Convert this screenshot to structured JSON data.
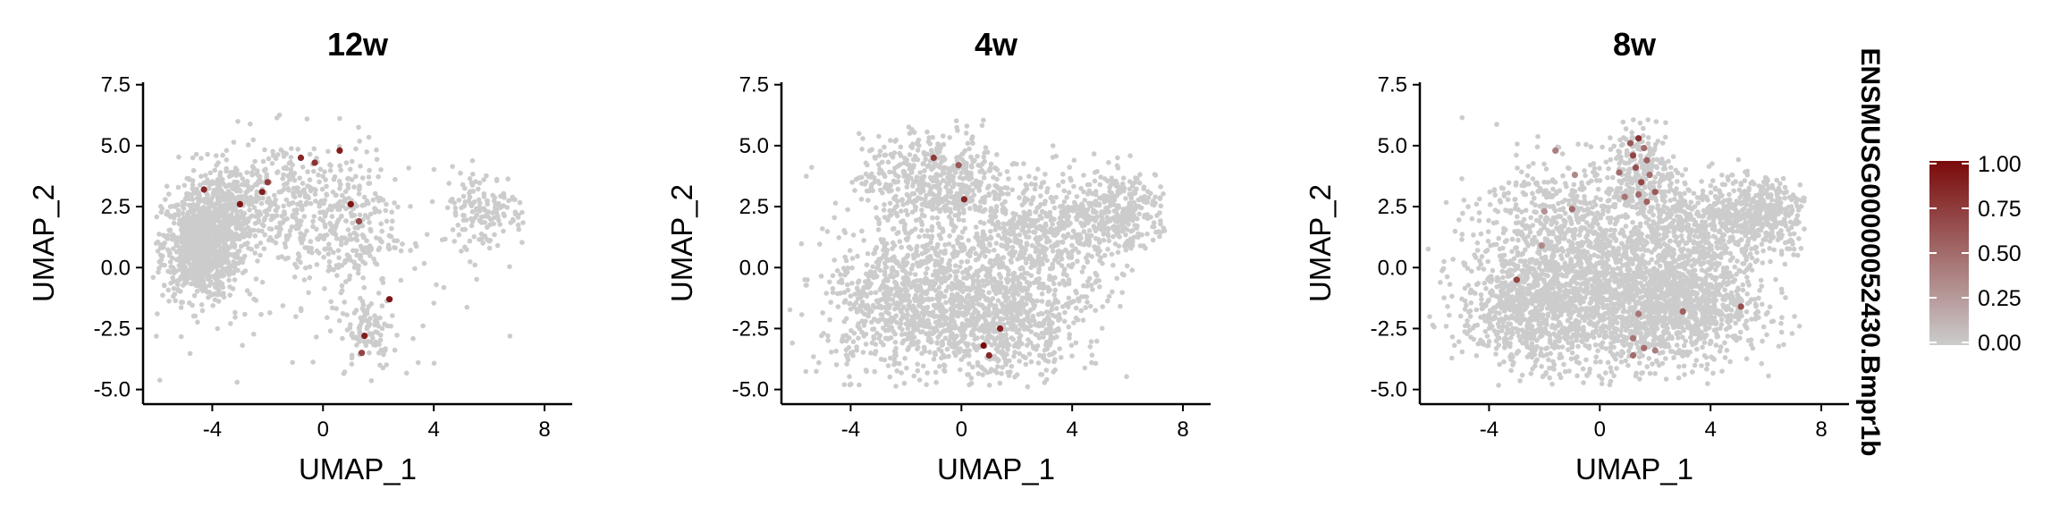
{
  "figure": {
    "colorbar": {
      "title": "ENSMUSG00000052430.Bmpr1b",
      "ticks": [
        "1.00",
        "0.75",
        "0.50",
        "0.25",
        "0.00"
      ],
      "tick_values": [
        1.0,
        0.75,
        0.5,
        0.25,
        0.0
      ],
      "low_color": "#cccccc",
      "high_color": "#7a0a0a"
    }
  },
  "chart_data": [
    {
      "type": "scatter",
      "title": "12w",
      "xlabel": "UMAP_1",
      "ylabel": "UMAP_2",
      "xlim": [
        -6.5,
        9
      ],
      "ylim": [
        -5.6,
        7.6
      ],
      "xticks": [
        -4,
        0,
        4,
        8
      ],
      "xtick_labels": [
        "-4",
        "0",
        "4",
        "8"
      ],
      "yticks": [
        7.5,
        5.0,
        2.5,
        0.0,
        -2.5,
        -5.0
      ],
      "ytick_labels": [
        "7.5",
        "5.0",
        "2.5",
        "0.0",
        "-2.5",
        "-5.0"
      ],
      "grid": false,
      "background_clusters": [
        {
          "cx": -4.4,
          "cy": 0.9,
          "sx": 0.7,
          "sy": 1.1,
          "n": 900
        },
        {
          "cx": -3.3,
          "cy": 2.4,
          "sx": 0.8,
          "sy": 1.0,
          "n": 320
        },
        {
          "cx": -1.0,
          "cy": 3.0,
          "sx": 1.4,
          "sy": 1.2,
          "n": 260
        },
        {
          "cx": 0.8,
          "cy": 1.2,
          "sx": 0.9,
          "sy": 1.2,
          "n": 220
        },
        {
          "cx": 1.6,
          "cy": -2.6,
          "sx": 0.5,
          "sy": 0.8,
          "n": 90
        },
        {
          "cx": 5.8,
          "cy": 2.4,
          "sx": 0.8,
          "sy": 0.8,
          "n": 150
        },
        {
          "cx": 0.0,
          "cy": 0.0,
          "sx": 3.2,
          "sy": 2.6,
          "n": 120
        }
      ],
      "expressing_cells": [
        {
          "x": -4.3,
          "y": 3.2,
          "value": 0.85
        },
        {
          "x": -3.0,
          "y": 2.6,
          "value": 0.95
        },
        {
          "x": -2.2,
          "y": 3.1,
          "value": 0.9
        },
        {
          "x": -2.0,
          "y": 3.5,
          "value": 0.75
        },
        {
          "x": -0.8,
          "y": 4.5,
          "value": 0.85
        },
        {
          "x": -0.3,
          "y": 4.3,
          "value": 0.8
        },
        {
          "x": 0.6,
          "y": 4.8,
          "value": 0.9
        },
        {
          "x": 1.0,
          "y": 2.6,
          "value": 0.95
        },
        {
          "x": 1.3,
          "y": 1.9,
          "value": 0.7
        },
        {
          "x": 2.4,
          "y": -1.3,
          "value": 0.95
        },
        {
          "x": 1.5,
          "y": -2.8,
          "value": 0.9
        },
        {
          "x": 1.4,
          "y": -3.5,
          "value": 0.7
        }
      ]
    },
    {
      "type": "scatter",
      "title": "4w",
      "xlabel": "UMAP_1",
      "ylabel": "UMAP_2",
      "xlim": [
        -6.5,
        9
      ],
      "ylim": [
        -5.6,
        7.6
      ],
      "xticks": [
        -4,
        0,
        4,
        8
      ],
      "xtick_labels": [
        "-4",
        "0",
        "4",
        "8"
      ],
      "yticks": [
        7.5,
        5.0,
        2.5,
        0.0,
        -2.5,
        -5.0
      ],
      "ytick_labels": [
        "7.5",
        "5.0",
        "2.5",
        "0.0",
        "-2.5",
        "-5.0"
      ],
      "grid": false,
      "background_clusters": [
        {
          "cx": -1.0,
          "cy": 3.6,
          "sx": 1.3,
          "sy": 0.9,
          "n": 450
        },
        {
          "cx": -2.0,
          "cy": -1.5,
          "sx": 1.5,
          "sy": 1.4,
          "n": 700
        },
        {
          "cx": 1.5,
          "cy": -2.2,
          "sx": 1.4,
          "sy": 1.2,
          "n": 650
        },
        {
          "cx": 2.8,
          "cy": 1.2,
          "sx": 1.6,
          "sy": 1.1,
          "n": 500
        },
        {
          "cx": 5.8,
          "cy": 2.4,
          "sx": 0.9,
          "sy": 0.8,
          "n": 300
        },
        {
          "cx": 0.0,
          "cy": 0.3,
          "sx": 2.5,
          "sy": 2.3,
          "n": 400
        }
      ],
      "expressing_cells": [
        {
          "x": -1.0,
          "y": 4.5,
          "value": 0.75
        },
        {
          "x": -0.1,
          "y": 4.2,
          "value": 0.6
        },
        {
          "x": 0.1,
          "y": 2.8,
          "value": 0.85
        },
        {
          "x": 1.4,
          "y": -2.5,
          "value": 0.9
        },
        {
          "x": 0.8,
          "y": -3.2,
          "value": 1.0
        },
        {
          "x": 1.0,
          "y": -3.6,
          "value": 0.85
        }
      ]
    },
    {
      "type": "scatter",
      "title": "8w",
      "xlabel": "UMAP_1",
      "ylabel": "UMAP_2",
      "xlim": [
        -6.5,
        9
      ],
      "ylim": [
        -5.6,
        7.6
      ],
      "xticks": [
        -4,
        0,
        4,
        8
      ],
      "xtick_labels": [
        "-4",
        "0",
        "4",
        "8"
      ],
      "yticks": [
        7.5,
        5.0,
        2.5,
        0.0,
        -2.5,
        -5.0
      ],
      "ytick_labels": [
        "7.5",
        "5.0",
        "2.5",
        "0.0",
        "-2.5",
        "-5.0"
      ],
      "grid": false,
      "background_clusters": [
        {
          "cx": 1.5,
          "cy": 4.0,
          "sx": 0.6,
          "sy": 0.8,
          "n": 220
        },
        {
          "cx": -1.2,
          "cy": 2.0,
          "sx": 1.6,
          "sy": 1.3,
          "n": 500
        },
        {
          "cx": -2.5,
          "cy": -1.5,
          "sx": 1.3,
          "sy": 1.3,
          "n": 800
        },
        {
          "cx": 1.0,
          "cy": -1.2,
          "sx": 1.8,
          "sy": 1.5,
          "n": 1300
        },
        {
          "cx": 3.4,
          "cy": -1.5,
          "sx": 1.4,
          "sy": 1.2,
          "n": 600
        },
        {
          "cx": 3.8,
          "cy": 1.8,
          "sx": 1.4,
          "sy": 0.9,
          "n": 500
        },
        {
          "cx": 6.0,
          "cy": 2.3,
          "sx": 0.8,
          "sy": 0.7,
          "n": 300
        }
      ],
      "expressing_cells": [
        {
          "x": 1.1,
          "y": 5.1,
          "value": 0.6
        },
        {
          "x": 1.4,
          "y": 5.3,
          "value": 0.8
        },
        {
          "x": 1.6,
          "y": 4.9,
          "value": 0.5
        },
        {
          "x": 1.2,
          "y": 4.6,
          "value": 0.7
        },
        {
          "x": 1.7,
          "y": 4.4,
          "value": 0.55
        },
        {
          "x": 1.3,
          "y": 4.1,
          "value": 0.65
        },
        {
          "x": 1.8,
          "y": 3.8,
          "value": 0.5
        },
        {
          "x": 1.5,
          "y": 3.5,
          "value": 0.7
        },
        {
          "x": 2.0,
          "y": 3.1,
          "value": 0.6
        },
        {
          "x": 1.4,
          "y": 3.0,
          "value": 0.5
        },
        {
          "x": 1.7,
          "y": 2.7,
          "value": 0.55
        },
        {
          "x": 0.7,
          "y": 3.9,
          "value": 0.5
        },
        {
          "x": 0.9,
          "y": 2.9,
          "value": 0.45
        },
        {
          "x": -1.6,
          "y": 4.8,
          "value": 0.4
        },
        {
          "x": -0.9,
          "y": 3.8,
          "value": 0.35
        },
        {
          "x": -1.0,
          "y": 2.4,
          "value": 0.5
        },
        {
          "x": -2.0,
          "y": 2.3,
          "value": 0.3
        },
        {
          "x": -2.1,
          "y": 0.9,
          "value": 0.35
        },
        {
          "x": -3.0,
          "y": -0.5,
          "value": 0.7
        },
        {
          "x": 1.4,
          "y": -1.9,
          "value": 0.45
        },
        {
          "x": 1.2,
          "y": -2.9,
          "value": 0.45
        },
        {
          "x": 1.6,
          "y": -3.3,
          "value": 0.5
        },
        {
          "x": 2.0,
          "y": -3.4,
          "value": 0.4
        },
        {
          "x": 1.2,
          "y": -3.6,
          "value": 0.5
        },
        {
          "x": 3.0,
          "y": -1.8,
          "value": 0.55
        },
        {
          "x": 5.1,
          "y": -1.6,
          "value": 0.65
        }
      ]
    }
  ]
}
